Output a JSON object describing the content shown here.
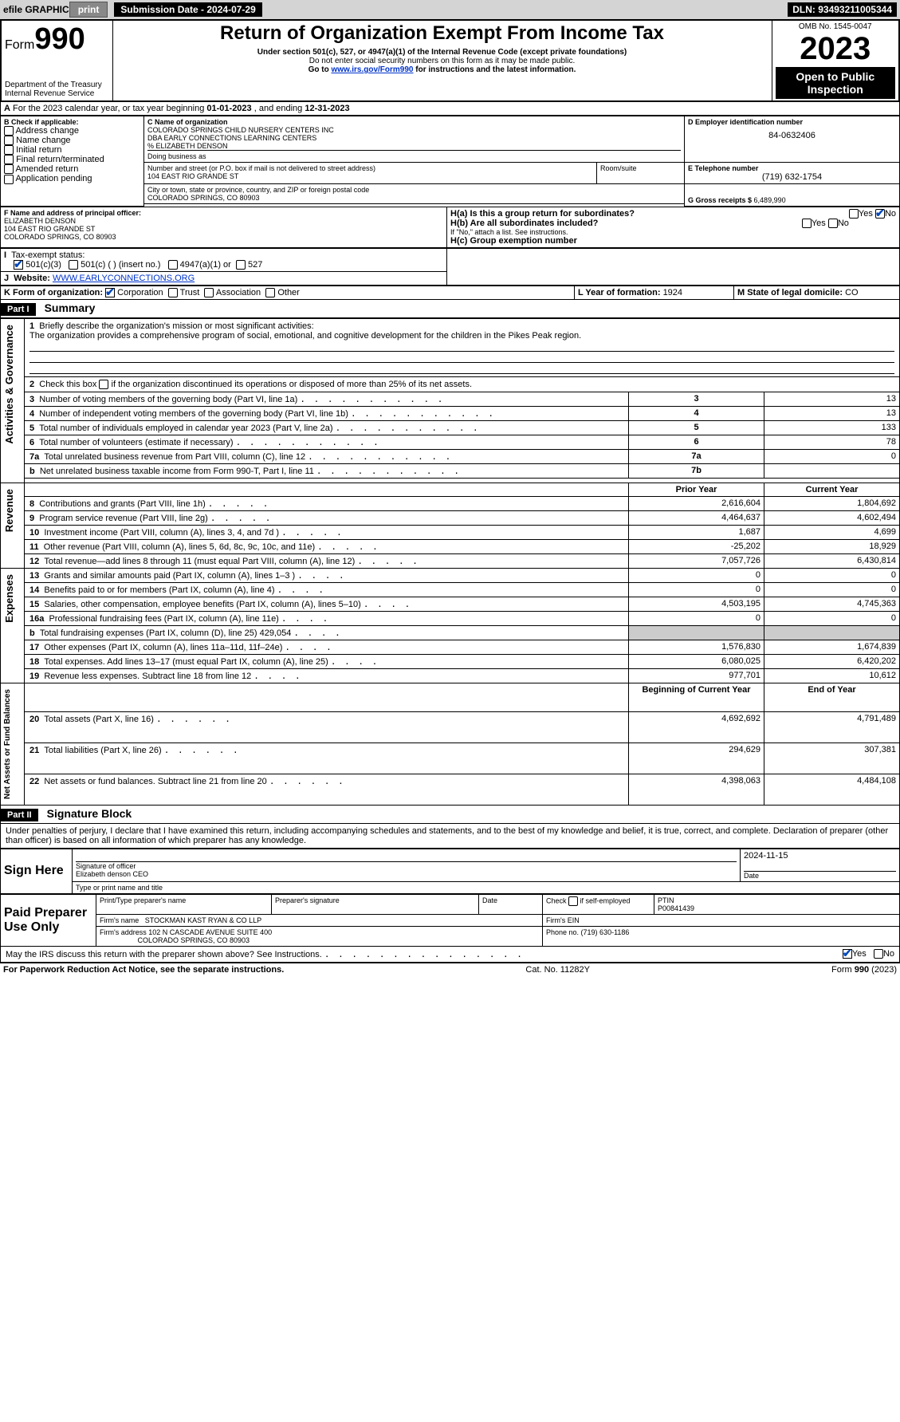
{
  "topbar": {
    "efile": "efile GRAPHIC",
    "print": "print",
    "sub_label": "Submission Date - 2024-07-29",
    "dln": "DLN: 93493211005344"
  },
  "header": {
    "form_word": "Form",
    "form_num": "990",
    "dept": "Department of the Treasury",
    "irs": "Internal Revenue Service",
    "title": "Return of Organization Exempt From Income Tax",
    "sub1": "Under section 501(c), 527, or 4947(a)(1) of the Internal Revenue Code (except private foundations)",
    "sub2": "Do not enter social security numbers on this form as it may be made public.",
    "sub3_pre": "Go to ",
    "sub3_link": "www.irs.gov/Form990",
    "sub3_post": " for instructions and the latest information.",
    "omb": "OMB No. 1545-0047",
    "year": "2023",
    "inspection": "Open to Public Inspection"
  },
  "line_a": {
    "text_pre": "For the 2023 calendar year, or tax year beginning ",
    "begin": "01-01-2023",
    "mid": " , and ending ",
    "end": "12-31-2023"
  },
  "box_b": {
    "label": "B Check if applicable:",
    "items": [
      "Address change",
      "Name change",
      "Initial return",
      "Final return/terminated",
      "Amended return",
      "Application pending"
    ]
  },
  "box_c": {
    "label": "C Name of organization",
    "l1": "COLORADO SPRINGS CHILD NURSERY CENTERS INC",
    "l2": "DBA EARLY CONNECTIONS LEARNING CENTERS",
    "l3": "% ELIZABETH DENSON",
    "dba": "Doing business as",
    "addr_label": "Number and street (or P.O. box if mail is not delivered to street address)",
    "addr": "104 EAST RIO GRANDE ST",
    "room_label": "Room/suite",
    "city_label": "City or town, state or province, country, and ZIP or foreign postal code",
    "city": "COLORADO SPRINGS, CO  80903"
  },
  "box_d": {
    "label": "D Employer identification number",
    "val": "84-0632406"
  },
  "box_e": {
    "label": "E Telephone number",
    "val": "(719) 632-1754"
  },
  "box_g": {
    "label": "G Gross receipts $ ",
    "val": "6,489,990"
  },
  "box_f": {
    "label": "F Name and address of principal officer:",
    "l1": "ELIZABETH DENSON",
    "l2": "104 EAST RIO GRANDE ST",
    "l3": "COLORADO SPRINGS, CO  80903"
  },
  "box_h": {
    "ha": "H(a)  Is this a group return for subordinates?",
    "hb": "H(b)  Are all subordinates included?",
    "hb_note": "If \"No,\" attach a list. See instructions.",
    "hc": "H(c)  Group exemption number ",
    "yes": "Yes",
    "no": "No"
  },
  "box_i": {
    "label": "Tax-exempt status:",
    "o1": "501(c)(3)",
    "o2": "501(c) (  ) (insert no.)",
    "o3": "4947(a)(1) or",
    "o4": "527"
  },
  "box_j": {
    "label": "Website: ",
    "val": "WWW.EARLYCONNECTIONS.ORG"
  },
  "box_k": {
    "label": "K Form of organization:",
    "o1": "Corporation",
    "o2": "Trust",
    "o3": "Association",
    "o4": "Other"
  },
  "box_l": {
    "label": "L Year of formation: ",
    "val": "1924"
  },
  "box_m": {
    "label": "M State of legal domicile: ",
    "val": "CO"
  },
  "part1": {
    "label": "Part I",
    "title": "Summary",
    "q1_label": "Briefly describe the organization's mission or most significant activities:",
    "q1_text": "The organization provides a comprehensive program of social, emotional, and cognitive development for the children in the Pikes Peak region.",
    "q2": "Check this box        if the organization discontinued its operations or disposed of more than 25% of its net assets.",
    "rows": [
      {
        "n": "3",
        "t": "Number of voting members of the governing body (Part VI, line 1a)",
        "box": "3",
        "v": "13"
      },
      {
        "n": "4",
        "t": "Number of independent voting members of the governing body (Part VI, line 1b)",
        "box": "4",
        "v": "13"
      },
      {
        "n": "5",
        "t": "Total number of individuals employed in calendar year 2023 (Part V, line 2a)",
        "box": "5",
        "v": "133"
      },
      {
        "n": "6",
        "t": "Total number of volunteers (estimate if necessary)",
        "box": "6",
        "v": "78"
      },
      {
        "n": "7a",
        "t": "Total unrelated business revenue from Part VIII, column (C), line 12",
        "box": "7a",
        "v": "0"
      },
      {
        "n": "b",
        "t": "Net unrelated business taxable income from Form 990-T, Part I, line 11",
        "box": "7b",
        "v": ""
      }
    ],
    "col_prior": "Prior Year",
    "col_current": "Current Year",
    "rev": [
      {
        "n": "8",
        "t": "Contributions and grants (Part VIII, line 1h)",
        "p": "2,616,604",
        "c": "1,804,692"
      },
      {
        "n": "9",
        "t": "Program service revenue (Part VIII, line 2g)",
        "p": "4,464,637",
        "c": "4,602,494"
      },
      {
        "n": "10",
        "t": "Investment income (Part VIII, column (A), lines 3, 4, and 7d )",
        "p": "1,687",
        "c": "4,699"
      },
      {
        "n": "11",
        "t": "Other revenue (Part VIII, column (A), lines 5, 6d, 8c, 9c, 10c, and 11e)",
        "p": "-25,202",
        "c": "18,929"
      },
      {
        "n": "12",
        "t": "Total revenue—add lines 8 through 11 (must equal Part VIII, column (A), line 12)",
        "p": "7,057,726",
        "c": "6,430,814"
      }
    ],
    "exp": [
      {
        "n": "13",
        "t": "Grants and similar amounts paid (Part IX, column (A), lines 1–3 )",
        "p": "0",
        "c": "0"
      },
      {
        "n": "14",
        "t": "Benefits paid to or for members (Part IX, column (A), line 4)",
        "p": "0",
        "c": "0"
      },
      {
        "n": "15",
        "t": "Salaries, other compensation, employee benefits (Part IX, column (A), lines 5–10)",
        "p": "4,503,195",
        "c": "4,745,363"
      },
      {
        "n": "16a",
        "t": "Professional fundraising fees (Part IX, column (A), line 11e)",
        "p": "0",
        "c": "0"
      },
      {
        "n": "b",
        "t": "Total fundraising expenses (Part IX, column (D), line 25) 429,054",
        "p": "shaded",
        "c": "shaded"
      },
      {
        "n": "17",
        "t": "Other expenses (Part IX, column (A), lines 11a–11d, 11f–24e)",
        "p": "1,576,830",
        "c": "1,674,839"
      },
      {
        "n": "18",
        "t": "Total expenses. Add lines 13–17 (must equal Part IX, column (A), line 25)",
        "p": "6,080,025",
        "c": "6,420,202"
      },
      {
        "n": "19",
        "t": "Revenue less expenses. Subtract line 18 from line 12",
        "p": "977,701",
        "c": "10,612"
      }
    ],
    "col_boy": "Beginning of Current Year",
    "col_eoy": "End of Year",
    "net": [
      {
        "n": "20",
        "t": "Total assets (Part X, line 16)",
        "p": "4,692,692",
        "c": "4,791,489"
      },
      {
        "n": "21",
        "t": "Total liabilities (Part X, line 26)",
        "p": "294,629",
        "c": "307,381"
      },
      {
        "n": "22",
        "t": "Net assets or fund balances. Subtract line 21 from line 20",
        "p": "4,398,063",
        "c": "4,484,108"
      }
    ],
    "side_labels": {
      "gov": "Activities & Governance",
      "rev": "Revenue",
      "exp": "Expenses",
      "net": "Net Assets or Fund Balances"
    }
  },
  "part2": {
    "label": "Part II",
    "title": "Signature Block",
    "decl": "Under penalties of perjury, I declare that I have examined this return, including accompanying schedules and statements, and to the best of my knowledge and belief, it is true, correct, and complete. Declaration of preparer (other than officer) is based on all information of which preparer has any knowledge.",
    "sign_here": "Sign Here",
    "sig_officer": "Signature of officer",
    "sig_name": "Elizabeth denson CEO",
    "sig_title_label": "Type or print name and title",
    "sig_date_label": "Date",
    "sig_date": "2024-11-15",
    "paid": "Paid Preparer Use Only",
    "prep_name_label": "Print/Type preparer's name",
    "prep_sig_label": "Preparer's signature",
    "date_label": "Date",
    "check_if": "Check         if self-employed",
    "ptin_label": "PTIN",
    "ptin": "P00841439",
    "firm_name_label": "Firm's name   ",
    "firm_name": "STOCKMAN KAST RYAN & CO LLP",
    "firm_ein_label": "Firm's EIN ",
    "firm_addr_label": "Firm's address ",
    "firm_addr1": "102 N CASCADE AVENUE SUITE 400",
    "firm_addr2": "COLORADO SPRINGS, CO  80903",
    "phone_label": "Phone no. ",
    "phone": "(719) 630-1186",
    "discuss": "May the IRS discuss this return with the preparer shown above? See Instructions.",
    "yes": "Yes",
    "no": "No"
  },
  "footer": {
    "left": "For Paperwork Reduction Act Notice, see the separate instructions.",
    "mid": "Cat. No. 11282Y",
    "right": "Form 990 (2023)"
  }
}
